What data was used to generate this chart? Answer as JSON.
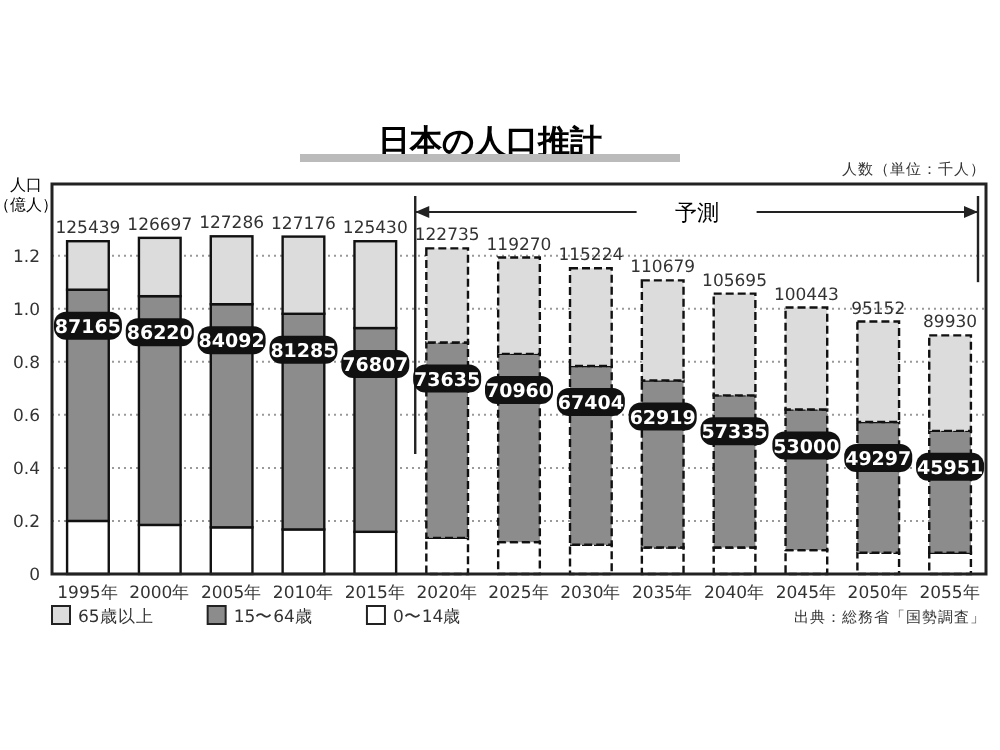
{
  "chart_data": {
    "type": "bar",
    "stacked": true,
    "title": "日本の人口推計",
    "ylabel": "人口（億人）",
    "categories": [
      "1995年",
      "2000年",
      "2005年",
      "2010年",
      "2015年",
      "2020年",
      "2025年",
      "2030年",
      "2035年",
      "2040年",
      "2045年",
      "2050年",
      "2055年"
    ],
    "series": [
      {
        "name": "0〜14歳",
        "color": "#ffffff",
        "values": [
          0.2,
          0.185,
          0.176,
          0.168,
          0.159,
          0.136,
          0.12,
          0.11,
          0.1,
          0.1,
          0.09,
          0.08,
          0.08
        ]
      },
      {
        "name": "15〜64歳",
        "color": "#8c8c8c",
        "values": [
          0.87165,
          0.8622,
          0.84092,
          0.81285,
          0.76807,
          0.73635,
          0.7096,
          0.67404,
          0.62919,
          0.57335,
          0.53,
          0.49297,
          0.45951
        ]
      },
      {
        "name": "65歳以上",
        "color": "#dcdcdc",
        "values": [
          0.18274,
          0.21977,
          0.25594,
          0.29091,
          0.32723,
          0.355,
          0.3631,
          0.3682,
          0.3776,
          0.3836,
          0.38443,
          0.37855,
          0.35979
        ]
      }
    ],
    "ylim": [
      0,
      1.47
    ],
    "yticks": [
      0,
      0.2,
      0.4,
      0.6,
      0.8,
      {
        "value": 1,
        "label": "1.0"
      },
      1.2
    ],
    "grid": "y",
    "legend": "bottom left",
    "ref_lines": [
      {
        "axis": "x",
        "value": "2020年"
      }
    ],
    "annotations": [
      "人数（単位：千人）",
      "出典：総務省「国勢調査」",
      "予測",
      {
        "text": "125439",
        "x": "1995年",
        "y": 1.25439
      },
      {
        "text": "126697",
        "x": "2000年",
        "y": 1.26697
      },
      {
        "text": "127286",
        "x": "2005年",
        "y": 1.27286
      },
      {
        "text": "127176",
        "x": "2010年",
        "y": 1.27176
      },
      {
        "text": "125430",
        "x": "2015年",
        "y": 1.2543
      },
      {
        "text": "122735",
        "x": "2020年",
        "y": 1.22735
      },
      {
        "text": "119270",
        "x": "2025年",
        "y": 1.1927
      },
      {
        "text": "115224",
        "x": "2030年",
        "y": 1.15224
      },
      {
        "text": "110679",
        "x": "2035年",
        "y": 1.10679
      },
      {
        "text": "105695",
        "x": "2040年",
        "y": 1.05695
      },
      {
        "text": "100443",
        "x": "2045年",
        "y": 1.00443
      },
      {
        "text": "95152",
        "x": "2050年",
        "y": 0.95152
      },
      {
        "text": "89930",
        "x": "2055年",
        "y": 0.8993
      },
      {
        "text": "87165",
        "x": "1995年",
        "y": 1.07165
      },
      {
        "text": "86220",
        "x": "2000年",
        "y": 1.0472
      },
      {
        "text": "84092",
        "x": "2005年",
        "y": 1.01692
      },
      {
        "text": "81285",
        "x": "2010年",
        "y": 0.98085
      },
      {
        "text": "76807",
        "x": "2015年",
        "y": 0.92707
      },
      {
        "text": "73635",
        "x": "2020年",
        "y": 0.87235
      },
      {
        "text": "70960",
        "x": "2025年",
        "y": 0.8296
      },
      {
        "text": "67404",
        "x": "2030年",
        "y": 0.78404
      },
      {
        "text": "62919",
        "x": "2035年",
        "y": 0.72919
      },
      {
        "text": "57335",
        "x": "2040年",
        "y": 0.67335
      },
      {
        "text": "53000",
        "x": "2045年",
        "y": 0.62
      },
      {
        "text": "49297",
        "x": "2050年",
        "y": 0.57297
      },
      {
        "text": "45951",
        "x": "2055年",
        "y": 0.53951
      }
    ]
  }
}
